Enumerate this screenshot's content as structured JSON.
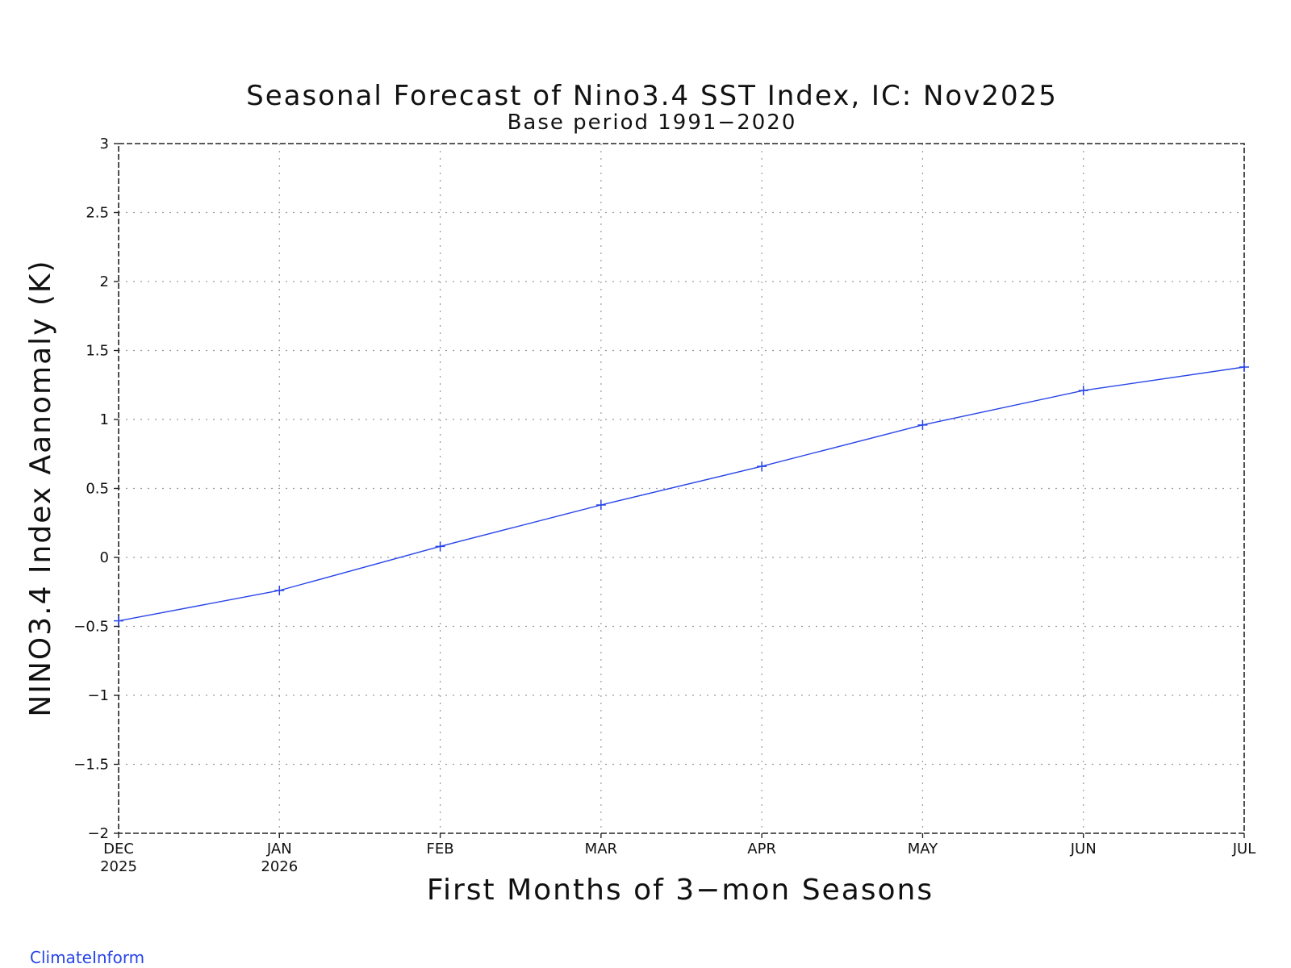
{
  "chart_data": {
    "type": "line",
    "title": "Seasonal Forecast of Nino3.4 SST Index, IC: Nov2025",
    "subtitle": "Base period 1991−2020",
    "xlabel": "First Months of 3−mon Seasons",
    "ylabel": "NINO3.4 Index Aanomaly (K)",
    "categories": [
      "DEC",
      "JAN",
      "FEB",
      "MAR",
      "APR",
      "MAY",
      "JUN",
      "JUL"
    ],
    "year_labels": [
      "2025",
      "2026",
      "",
      "",
      "",
      "",
      "",
      ""
    ],
    "ylim": [
      -2,
      3
    ],
    "yticks": [
      3,
      2.5,
      2,
      1.5,
      1,
      0.5,
      0,
      -0.5,
      -1,
      -1.5,
      -2
    ],
    "ytick_labels": [
      "3",
      "2.5",
      "2",
      "1.5",
      "1",
      "0.5",
      "0",
      "−0.5",
      "−1",
      "−1.5",
      "−2"
    ],
    "grid": true,
    "series": [
      {
        "values": [
          -0.46,
          -0.24,
          0.08,
          0.38,
          0.66,
          0.96,
          1.21,
          1.38
        ],
        "color": "#2845e8",
        "marker": "plus"
      }
    ]
  },
  "credit": {
    "text": "ClimateInform",
    "color": "#2845e8"
  }
}
